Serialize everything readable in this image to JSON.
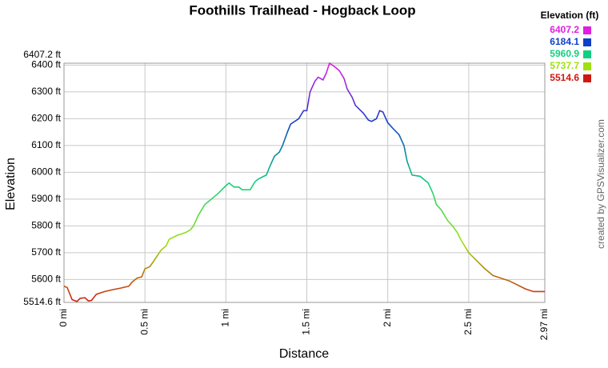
{
  "chart_data": {
    "type": "line",
    "title": "Foothills Trailhead - Hogback Loop",
    "x_label": "Distance",
    "y_label": "Elevation",
    "credit": "created by GPSVisualizer.com",
    "legend_title": "Elevation (ft)",
    "color_scale": [
      {
        "value": 6407.2,
        "color": "#e020e0"
      },
      {
        "value": 6184.1,
        "color": "#1040c8"
      },
      {
        "value": 5960.9,
        "color": "#10d080"
      },
      {
        "value": 5737.7,
        "color": "#a0e010"
      },
      {
        "value": 5514.6,
        "color": "#d01810"
      }
    ],
    "grid": true,
    "xlim": [
      0,
      2.97
    ],
    "xticks": [
      {
        "value": 0,
        "label": "0 mi"
      },
      {
        "value": 0.5,
        "label": "0.5 mi"
      },
      {
        "value": 1,
        "label": "1 mi"
      },
      {
        "value": 1.5,
        "label": "1.5 mi"
      },
      {
        "value": 2,
        "label": "2 mi"
      },
      {
        "value": 2.5,
        "label": "2.5 mi"
      },
      {
        "value": 2.97,
        "label": "2.97 mi"
      }
    ],
    "ylim": [
      5514.6,
      6407.2
    ],
    "yticks": [
      {
        "value": 5514.6,
        "label": "5514.6 ft"
      },
      {
        "value": 5600,
        "label": "5600 ft"
      },
      {
        "value": 5700,
        "label": "5700 ft"
      },
      {
        "value": 5800,
        "label": "5800 ft"
      },
      {
        "value": 5900,
        "label": "5900 ft"
      },
      {
        "value": 6000,
        "label": "6000 ft"
      },
      {
        "value": 6100,
        "label": "6100 ft"
      },
      {
        "value": 6200,
        "label": "6200 ft"
      },
      {
        "value": 6300,
        "label": "6300 ft"
      },
      {
        "value": 6400,
        "label": "6400 ft"
      },
      {
        "value": 6407.2,
        "label": "6407.2 ft"
      }
    ],
    "x": [
      0,
      0.02,
      0.05,
      0.08,
      0.1,
      0.13,
      0.15,
      0.17,
      0.2,
      0.25,
      0.3,
      0.35,
      0.4,
      0.42,
      0.45,
      0.48,
      0.5,
      0.53,
      0.55,
      0.6,
      0.63,
      0.65,
      0.7,
      0.75,
      0.78,
      0.8,
      0.83,
      0.87,
      0.9,
      0.95,
      1.0,
      1.02,
      1.05,
      1.08,
      1.1,
      1.15,
      1.18,
      1.2,
      1.25,
      1.27,
      1.3,
      1.33,
      1.35,
      1.38,
      1.4,
      1.45,
      1.48,
      1.5,
      1.52,
      1.55,
      1.57,
      1.6,
      1.62,
      1.64,
      1.67,
      1.7,
      1.73,
      1.75,
      1.78,
      1.8,
      1.85,
      1.88,
      1.9,
      1.93,
      1.95,
      1.97,
      2.0,
      2.03,
      2.07,
      2.1,
      2.12,
      2.15,
      2.2,
      2.25,
      2.28,
      2.3,
      2.33,
      2.37,
      2.4,
      2.43,
      2.45,
      2.5,
      2.55,
      2.6,
      2.65,
      2.7,
      2.75,
      2.8,
      2.85,
      2.9,
      2.97
    ],
    "values": [
      5575,
      5570,
      5525,
      5518,
      5530,
      5532,
      5520,
      5522,
      5545,
      5555,
      5562,
      5568,
      5575,
      5590,
      5605,
      5610,
      5640,
      5648,
      5665,
      5710,
      5725,
      5750,
      5765,
      5775,
      5785,
      5800,
      5840,
      5880,
      5895,
      5920,
      5950,
      5960,
      5945,
      5945,
      5935,
      5935,
      5965,
      5975,
      5990,
      6020,
      6060,
      6075,
      6100,
      6150,
      6180,
      6200,
      6230,
      6230,
      6300,
      6340,
      6355,
      6345,
      6370,
      6407.2,
      6395,
      6380,
      6350,
      6310,
      6280,
      6250,
      6220,
      6195,
      6190,
      6200,
      6230,
      6225,
      6185,
      6165,
      6140,
      6100,
      6040,
      5990,
      5985,
      5960,
      5920,
      5880,
      5860,
      5820,
      5800,
      5775,
      5750,
      5700,
      5670,
      5640,
      5615,
      5605,
      5595,
      5580,
      5565,
      5555,
      5555
    ]
  }
}
